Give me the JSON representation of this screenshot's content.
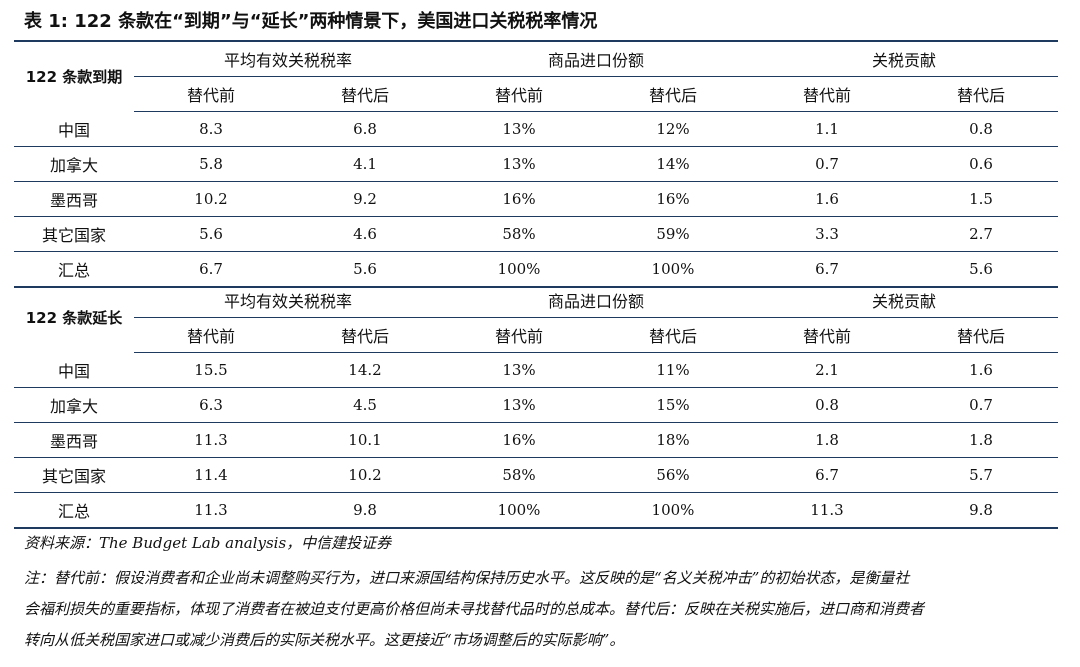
{
  "title": "表 1: 122 条款在“到期”与“延长”两种情景下，美国进口关税税率情况",
  "column_groups": [
    "平均有效关税税率",
    "商品进口份额",
    "关税贡献"
  ],
  "sub_headers": [
    "替代前",
    "替代后"
  ],
  "sections": [
    {
      "label": "122 条款到期",
      "rows": [
        {
          "name": "中国",
          "values": [
            "8.3",
            "6.8",
            "13%",
            "12%",
            "1.1",
            "0.8"
          ]
        },
        {
          "name": "加拿大",
          "values": [
            "5.8",
            "4.1",
            "13%",
            "14%",
            "0.7",
            "0.6"
          ]
        },
        {
          "name": "墨西哥",
          "values": [
            "10.2",
            "9.2",
            "16%",
            "16%",
            "1.6",
            "1.5"
          ]
        },
        {
          "name": "其它国家",
          "values": [
            "5.6",
            "4.6",
            "58%",
            "59%",
            "3.3",
            "2.7"
          ]
        },
        {
          "name": "汇总",
          "values": [
            "6.7",
            "5.6",
            "100%",
            "100%",
            "6.7",
            "5.6"
          ]
        }
      ]
    },
    {
      "label": "122 条款延长",
      "rows": [
        {
          "name": "中国",
          "values": [
            "15.5",
            "14.2",
            "13%",
            "11%",
            "2.1",
            "1.6"
          ]
        },
        {
          "name": "加拿大",
          "values": [
            "6.3",
            "4.5",
            "13%",
            "15%",
            "0.8",
            "0.7"
          ]
        },
        {
          "name": "墨西哥",
          "values": [
            "11.3",
            "10.1",
            "16%",
            "18%",
            "1.8",
            "1.8"
          ]
        },
        {
          "name": "其它国家",
          "values": [
            "11.4",
            "10.2",
            "58%",
            "56%",
            "6.7",
            "5.7"
          ]
        },
        {
          "name": "汇总",
          "values": [
            "11.3",
            "9.8",
            "100%",
            "100%",
            "11.3",
            "9.8"
          ]
        }
      ]
    }
  ],
  "source": "资料来源：The Budget Lab analysis，中信建投证券",
  "note_lines": [
    "注：替代前：假设消费者和企业尚未调整购买行为，进口来源国结构保持历史水平。这反映的是“名义关税冲击”的初始状态，是衡量社",
    "会福利损失的重要指标，体现了消费者在被迫支付更高价格但尚未寻找替代品时的总成本。替代后：反映在关税实施后，进口商和消费者",
    "转向从低关税国家进口或减少消费后的实际关税水平。这更接近“市场调整后的实际影响”。"
  ]
}
